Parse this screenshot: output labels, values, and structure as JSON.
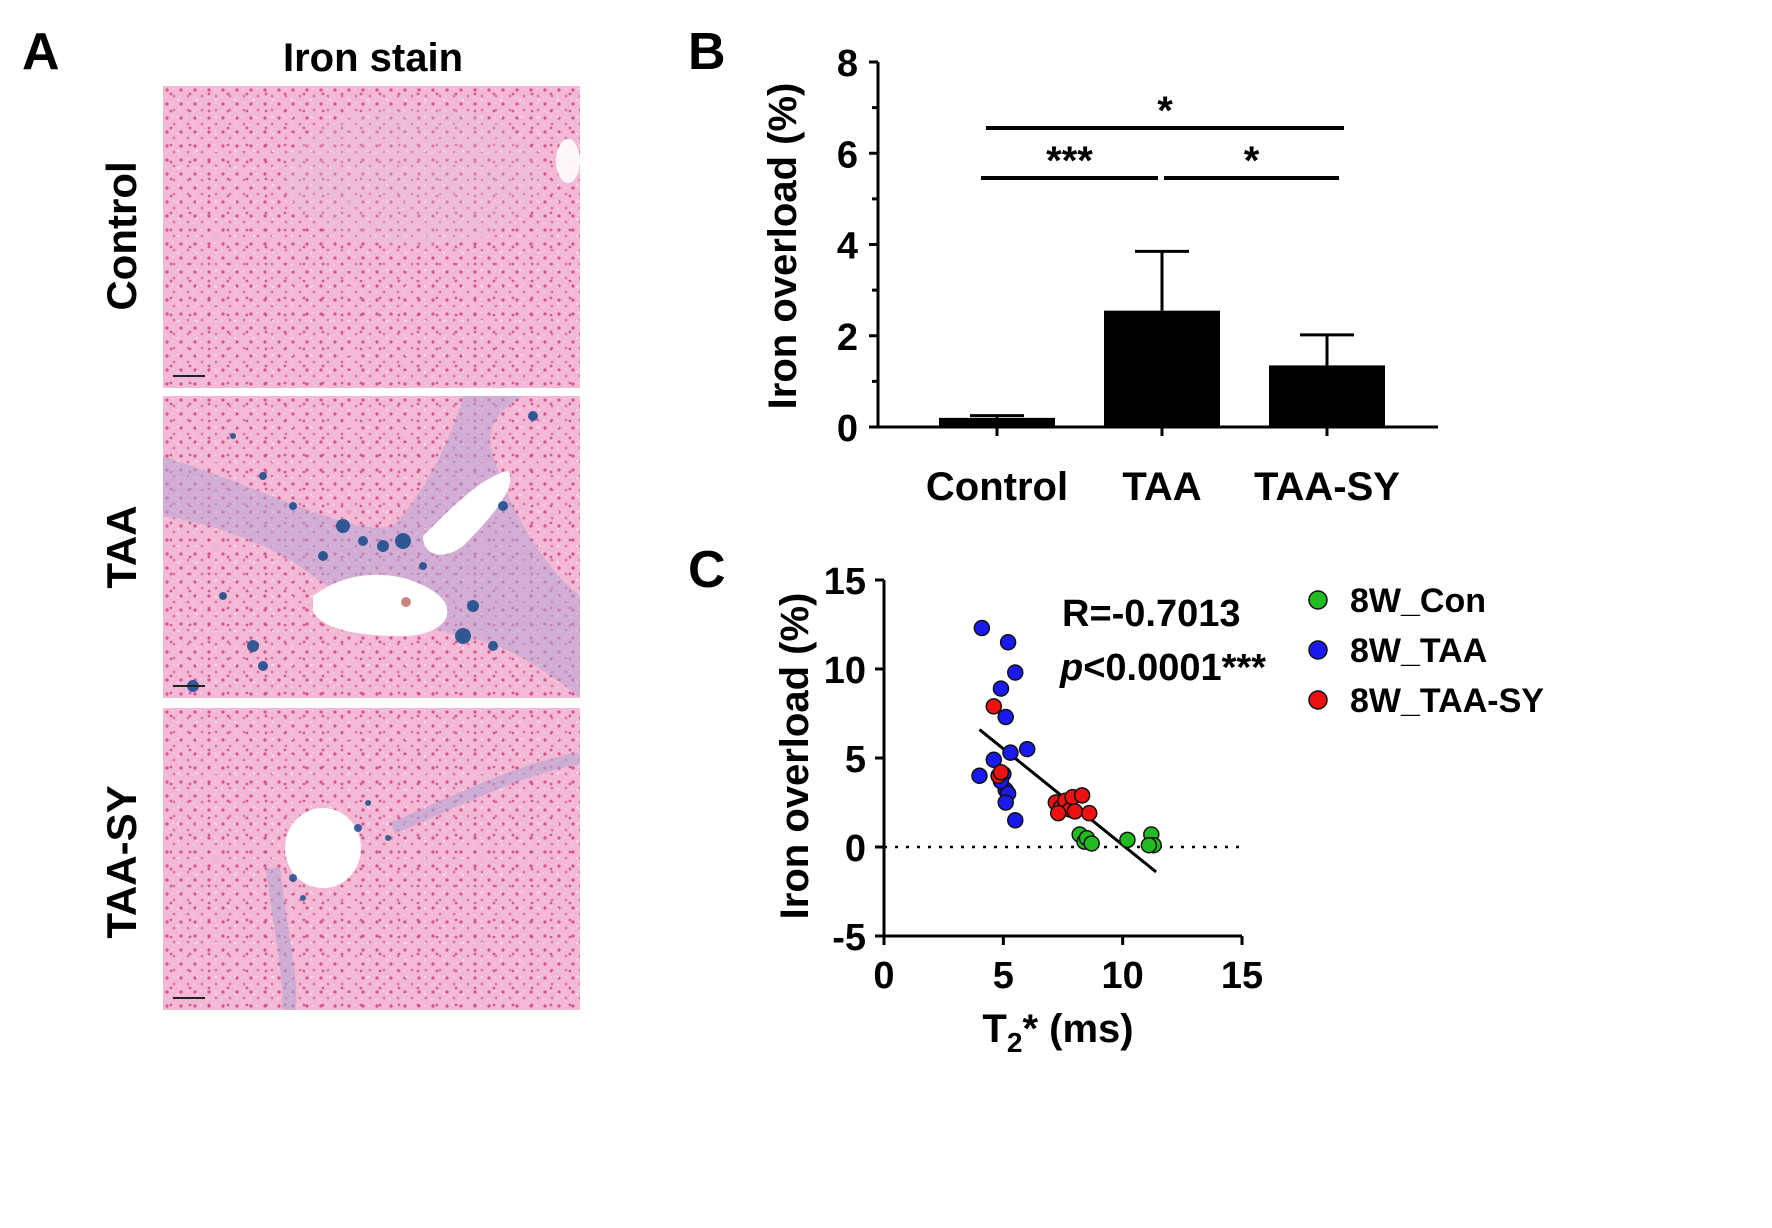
{
  "panelA": {
    "letter": "A",
    "title": "Iron stain",
    "rows": [
      "Control",
      "TAA",
      "TAA-SY"
    ]
  },
  "panelB": {
    "letter": "B",
    "ylabel": "Iron overload (%)",
    "significance": [
      "*",
      "***",
      "*"
    ]
  },
  "panelC": {
    "letter": "C",
    "ylabel": "Iron overload (%)",
    "xlabel_main": "T",
    "xlabel_sub": "2",
    "xlabel_rest": "* (ms)",
    "stat_r": "R=-0.7013",
    "stat_p_italic": "p",
    "stat_p_rest": "<0.0001***",
    "legend": [
      {
        "label": "8W_Con",
        "color": "#22bb22"
      },
      {
        "label": "8W_TAA",
        "color": "#1a1aee"
      },
      {
        "label": "8W_TAA-SY",
        "color": "#ee1111"
      }
    ]
  },
  "chart_data": [
    {
      "type": "bar",
      "categories": [
        "Control",
        "TAA",
        "TAA-SY"
      ],
      "values": [
        0.2,
        2.55,
        1.35
      ],
      "errors": [
        0.05,
        1.3,
        0.67
      ],
      "ylabel": "Iron overload (%)",
      "ylim": [
        0,
        8
      ],
      "yticks": [
        0,
        2,
        4,
        6,
        8
      ],
      "significance": [
        {
          "from": "Control",
          "to": "TAA-SY",
          "label": "*"
        },
        {
          "from": "Control",
          "to": "TAA",
          "label": "***"
        },
        {
          "from": "TAA",
          "to": "TAA-SY",
          "label": "*"
        }
      ]
    },
    {
      "type": "scatter",
      "xlabel": "T2* (ms)",
      "ylabel": "Iron overload (%)",
      "xlim": [
        0,
        15
      ],
      "ylim": [
        -5,
        15
      ],
      "xticks": [
        0,
        5,
        10,
        15
      ],
      "yticks": [
        -5,
        0,
        5,
        10,
        15
      ],
      "reference_line_y": 0,
      "fit_line": [
        [
          4.0,
          6.6
        ],
        [
          11.4,
          -1.4
        ]
      ],
      "series": [
        {
          "name": "8W_Con",
          "color": "#22bb22",
          "x": [
            8.2,
            8.4,
            8.5,
            8.7,
            10.2,
            11.2,
            11.3,
            11.1
          ],
          "y": [
            0.7,
            0.3,
            0.5,
            0.2,
            0.4,
            0.7,
            0.1,
            0.1
          ]
        },
        {
          "name": "8W_TAA",
          "color": "#1a1aee",
          "x": [
            4.1,
            5.2,
            5.5,
            4.9,
            5.1,
            4.6,
            5.3,
            6.0,
            4.0,
            5.0,
            5.1,
            5.2,
            5.1,
            4.9,
            5.5
          ],
          "y": [
            12.3,
            11.5,
            9.8,
            8.9,
            7.3,
            4.9,
            5.3,
            5.5,
            4.0,
            4.1,
            3.2,
            3.0,
            2.5,
            3.7,
            1.5
          ]
        },
        {
          "name": "8W_TAA-SY",
          "color": "#ee1111",
          "x": [
            4.6,
            4.8,
            4.9,
            7.2,
            7.4,
            7.6,
            7.8,
            7.9,
            8.0,
            8.3,
            8.6,
            7.3
          ],
          "y": [
            7.9,
            4.0,
            4.2,
            2.5,
            2.2,
            2.6,
            2.1,
            2.8,
            2.0,
            2.9,
            1.9,
            1.9
          ]
        }
      ]
    }
  ]
}
